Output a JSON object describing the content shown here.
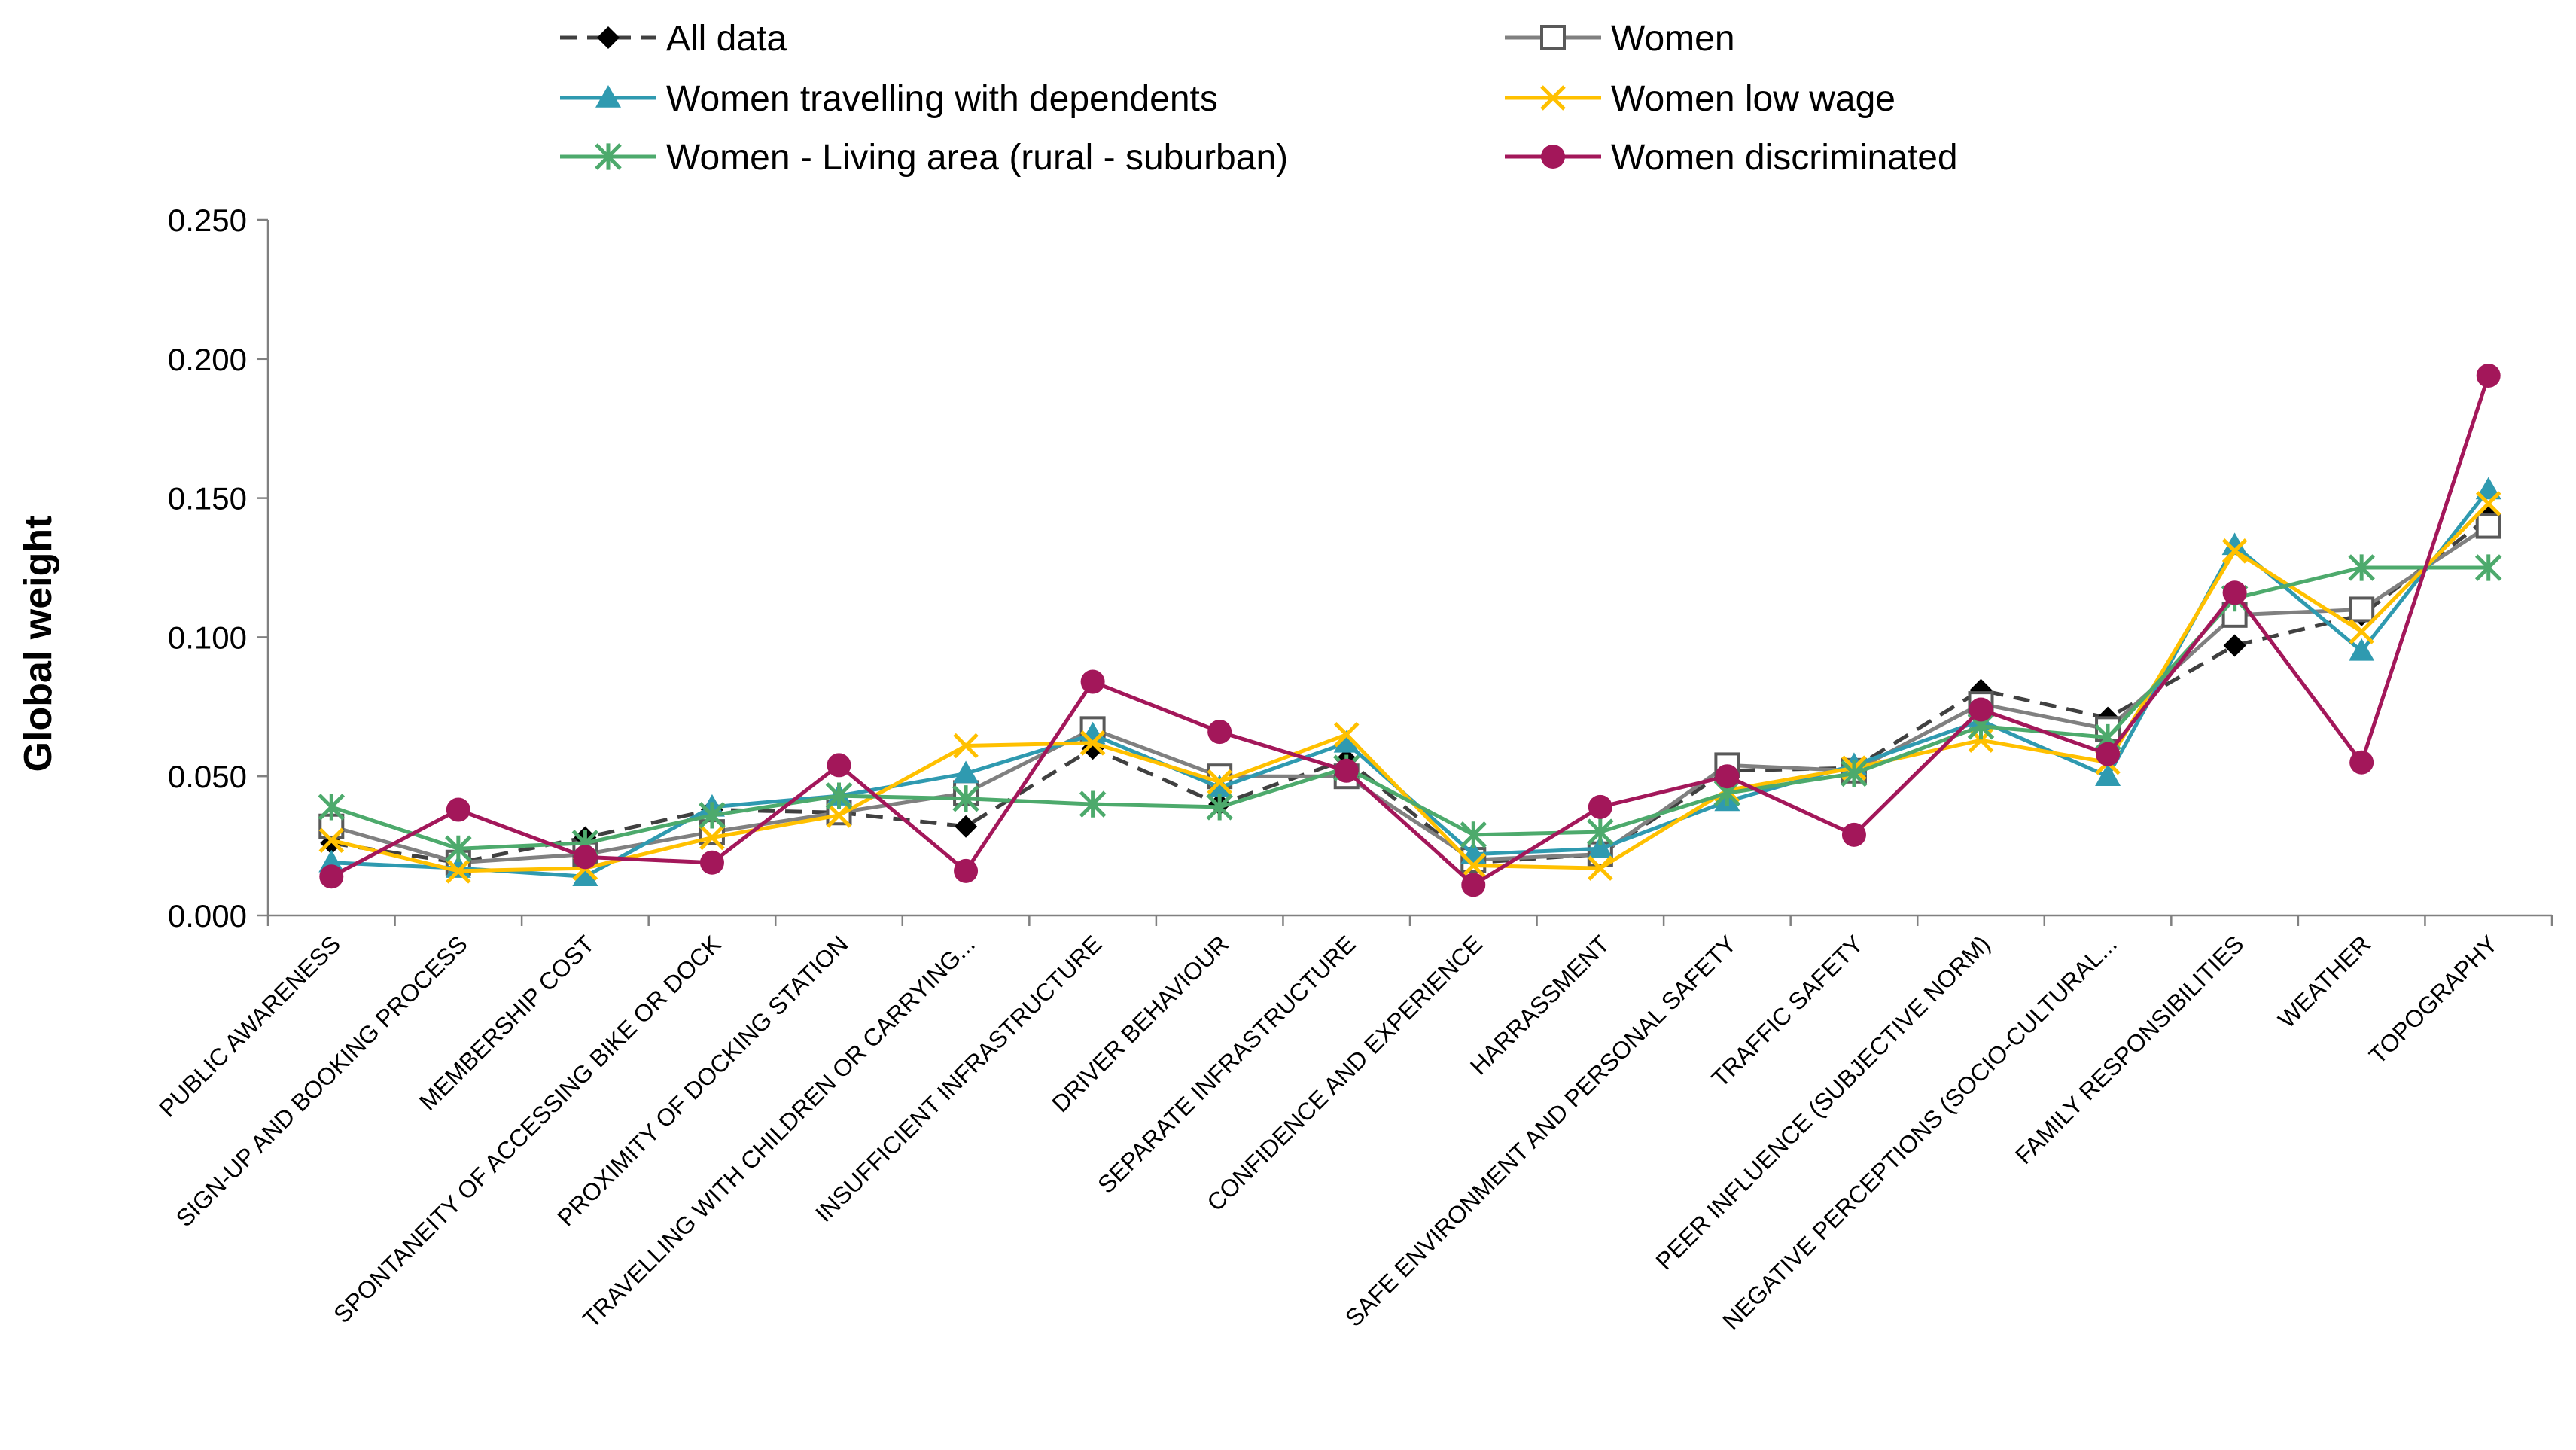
{
  "chart_data": {
    "type": "line",
    "title": "",
    "xlabel": "",
    "ylabel": "Global weight",
    "ylim": [
      0,
      0.25
    ],
    "yticks": [
      "0.000",
      "0.050",
      "0.100",
      "0.150",
      "0.200",
      "0.250"
    ],
    "grid": false,
    "legend_position": "top",
    "categories": [
      "PUBLIC AWARENESS",
      "SIGN-UP AND BOOKING PROCESS",
      "MEMBERSHIP COST",
      "SPONTANEITY OF ACCESSING BIKE OR DOCK",
      "PROXIMITY OF DOCKING STATION",
      "TRAVELLING WITH CHILDREN OR CARRYING...",
      "INSUFFICIENT INFRASTRUCTURE",
      "DRIVER BEHAVIOUR",
      "SEPARATE INFRASTRUCTURE",
      "CONFIDENCE AND EXPERIENCE",
      "HARRASSMENT",
      "SAFE ENVIRONMENT AND PERSONAL SAFETY",
      "TRAFFIC SAFETY",
      "PEER INFLUENCE (SUBJECTIVE NORM)",
      "NEGATIVE PERCEPTIONS (SOCIO-CULTURAL...",
      "FAMILY RESPONSIBILITIES",
      "WEATHER",
      "TOPOGRAPHY"
    ],
    "series": [
      {
        "name": "All data",
        "color": "#404040",
        "dash": true,
        "marker": "diamond",
        "values": [
          0.026,
          0.019,
          0.028,
          0.038,
          0.037,
          0.032,
          0.06,
          0.04,
          0.056,
          0.019,
          0.022,
          0.052,
          0.053,
          0.081,
          0.071,
          0.097,
          0.108,
          0.143
        ]
      },
      {
        "name": "Women",
        "color": "#808080",
        "dash": false,
        "marker": "square",
        "values": [
          0.032,
          0.019,
          0.022,
          0.03,
          0.037,
          0.044,
          0.067,
          0.05,
          0.05,
          0.02,
          0.022,
          0.054,
          0.052,
          0.076,
          0.067,
          0.108,
          0.11,
          0.14
        ]
      },
      {
        "name": "Women travelling with dependents",
        "color": "#2f9ab0",
        "dash": false,
        "marker": "triangle",
        "values": [
          0.019,
          0.017,
          0.014,
          0.039,
          0.043,
          0.051,
          0.065,
          0.046,
          0.062,
          0.022,
          0.024,
          0.041,
          0.054,
          0.07,
          0.05,
          0.133,
          0.095,
          0.153
        ]
      },
      {
        "name": "Women low wage",
        "color": "#ffc000",
        "dash": false,
        "marker": "x",
        "values": [
          0.027,
          0.016,
          0.017,
          0.028,
          0.036,
          0.061,
          0.062,
          0.048,
          0.065,
          0.018,
          0.017,
          0.045,
          0.053,
          0.063,
          0.055,
          0.131,
          0.102,
          0.148
        ]
      },
      {
        "name": "Women - Living area (rural -  suburban)",
        "color": "#4daa6c",
        "dash": false,
        "marker": "asterisk",
        "values": [
          0.039,
          0.024,
          0.026,
          0.036,
          0.043,
          0.042,
          0.04,
          0.039,
          0.053,
          0.029,
          0.03,
          0.044,
          0.051,
          0.068,
          0.064,
          0.114,
          0.125,
          0.125
        ]
      },
      {
        "name": "Women discriminated",
        "color": "#a3175a",
        "dash": false,
        "marker": "circle",
        "values": [
          0.014,
          0.038,
          0.021,
          0.019,
          0.054,
          0.016,
          0.084,
          0.066,
          0.052,
          0.011,
          0.039,
          0.05,
          0.029,
          0.074,
          0.058,
          0.116,
          0.055,
          0.194
        ]
      }
    ]
  }
}
